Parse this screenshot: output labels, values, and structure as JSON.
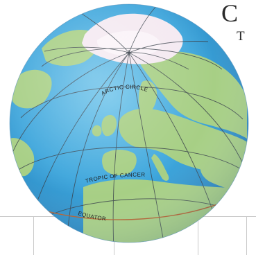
{
  "page": {
    "heading_fragment": "C",
    "subheading_fragment": "T"
  },
  "globe": {
    "labels": {
      "arctic_circle": "ARCTIC CIRCLE",
      "tropic_of_cancer": "TROPIC OF CANCER",
      "equator": "EQUATOR"
    },
    "colors": {
      "ocean": "#3ea6dc",
      "ocean_deep": "#2f8fc7",
      "land": "#a7cf85",
      "land_dark": "#8fbf6a",
      "ice": "#f4e9f1",
      "grid": "#39414a",
      "equator_line": "#b5602f",
      "table_lines": "#c9c9c9"
    }
  }
}
